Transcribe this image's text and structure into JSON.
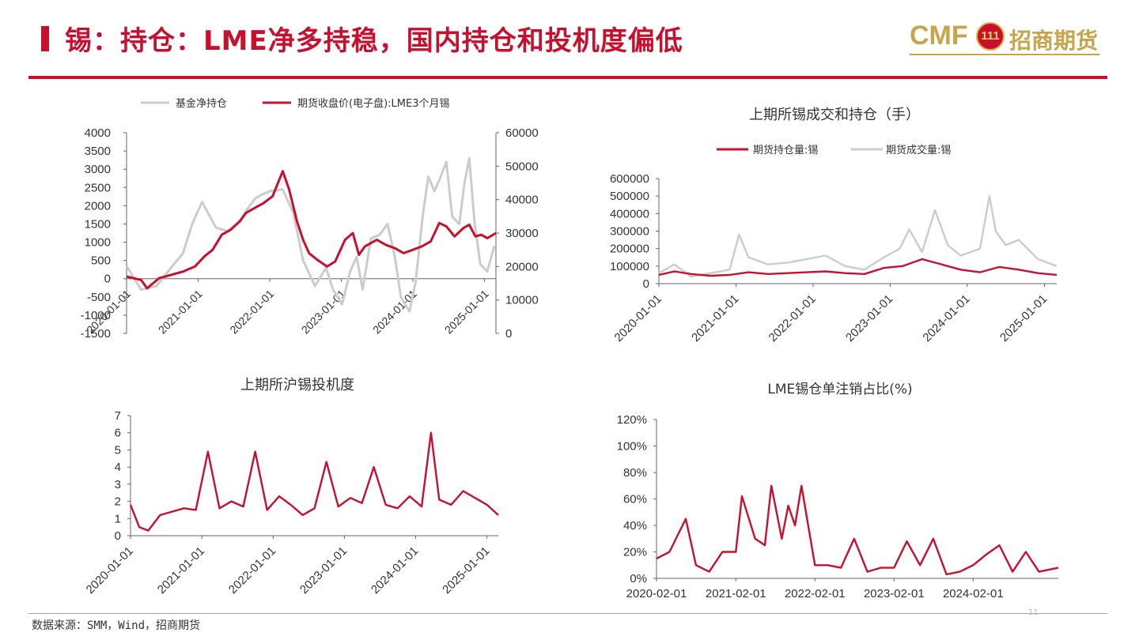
{
  "page": {
    "title": "锡：持仓：LME净多持稳，国内持仓和投机度偏低",
    "logo_cmf": "CMF",
    "logo_badge": "111",
    "logo_cn": "招商期货",
    "source": "数据来源：SMM，Wind，招商期货",
    "page_number": "11"
  },
  "colors": {
    "red": "#c8102e",
    "gray": "#cccccc",
    "gold": "#c9a44a"
  },
  "chart_data": [
    {
      "id": "c1",
      "type": "line",
      "title": "",
      "x_ticks": [
        "2020-01-01",
        "2021-01-01",
        "2022-01-01",
        "2023-01-01",
        "2024-01-01",
        "2025-01-01"
      ],
      "x_range": [
        "2020-01-01",
        "2025-02-28"
      ],
      "y_left_ticks": [
        "4000",
        "3500",
        "3000",
        "2500",
        "2000",
        "1500",
        "1000",
        "500",
        "0",
        "-500",
        "-1000",
        "-1500"
      ],
      "y_left_range": [
        -1500,
        4000
      ],
      "y_right_ticks": [
        "60000",
        "50000",
        "40000",
        "30000",
        "20000",
        "10000",
        "0"
      ],
      "y_right_range": [
        0,
        60000
      ],
      "legend_position": "top",
      "series": [
        {
          "name": "基金净持仓",
          "axis": "left",
          "color": "#cccccc",
          "x": [
            "2020-01-01",
            "2020-03-15",
            "2020-06-01",
            "2020-08-15",
            "2020-10-15",
            "2020-12-01",
            "2021-01-20",
            "2021-02-10",
            "2021-04-01",
            "2021-06-01",
            "2021-08-01",
            "2021-09-20",
            "2021-10-20",
            "2021-11-20",
            "2022-01-01",
            "2022-03-08",
            "2022-05-01",
            "2022-06-20",
            "2022-08-20",
            "2022-10-15",
            "2022-11-20",
            "2023-01-05",
            "2023-02-15",
            "2023-03-20",
            "2023-04-20",
            "2023-06-01",
            "2023-07-15",
            "2023-08-25",
            "2023-10-01",
            "2023-11-01",
            "2023-12-15",
            "2024-01-15",
            "2024-02-20",
            "2024-03-20",
            "2024-04-20",
            "2024-05-15",
            "2024-06-20",
            "2024-07-20",
            "2024-08-25",
            "2024-09-20",
            "2024-10-15",
            "2024-11-10",
            "2024-12-10",
            "2025-01-15",
            "2025-02-20"
          ],
          "y": [
            350,
            -300,
            -200,
            300,
            700,
            1500,
            2100,
            1900,
            1400,
            1300,
            1600,
            2000,
            2200,
            2300,
            2400,
            2450,
            1800,
            500,
            -200,
            300,
            -300,
            -700,
            200,
            600,
            -300,
            1100,
            1200,
            1500,
            600,
            -500,
            -900,
            -100,
            1700,
            2800,
            2400,
            2700,
            3200,
            1700,
            1500,
            2600,
            3300,
            1600,
            400,
            200,
            900
          ]
        },
        {
          "name": "期货收盘价(电子盘):LME3个月锡",
          "axis": "right",
          "color": "#c8102e",
          "x": [
            "2020-01-01",
            "2020-03-15",
            "2020-04-15",
            "2020-06-15",
            "2020-08-15",
            "2020-10-15",
            "2020-12-15",
            "2021-02-01",
            "2021-03-15",
            "2021-05-01",
            "2021-06-15",
            "2021-08-01",
            "2021-09-01",
            "2021-10-15",
            "2021-12-01",
            "2022-01-15",
            "2022-03-08",
            "2022-04-10",
            "2022-05-20",
            "2022-06-20",
            "2022-07-20",
            "2022-09-01",
            "2022-10-20",
            "2022-12-01",
            "2023-01-20",
            "2023-03-01",
            "2023-04-01",
            "2023-05-01",
            "2023-06-01",
            "2023-07-01",
            "2023-08-15",
            "2023-10-01",
            "2023-11-15",
            "2024-01-01",
            "2024-02-15",
            "2024-04-01",
            "2024-05-15",
            "2024-06-20",
            "2024-08-01",
            "2024-09-15",
            "2024-10-15",
            "2024-11-15",
            "2024-12-15",
            "2025-01-15",
            "2025-02-28"
          ],
          "y": [
            17000,
            16000,
            13500,
            16500,
            17500,
            18500,
            20000,
            23000,
            25000,
            29500,
            31000,
            33500,
            36000,
            37500,
            39000,
            41000,
            48500,
            43000,
            33500,
            28000,
            24000,
            22000,
            20000,
            21500,
            28000,
            30000,
            23500,
            26000,
            27000,
            28000,
            26500,
            25500,
            24000,
            25000,
            26000,
            27500,
            33000,
            32000,
            29000,
            31500,
            32500,
            29000,
            29500,
            28500,
            30000
          ]
        }
      ]
    },
    {
      "id": "c2",
      "type": "line",
      "title": "上期所锡成交和持仓（手）",
      "x_ticks": [
        "2020-01-01",
        "2021-01-01",
        "2022-01-01",
        "2023-01-01",
        "2024-01-01",
        "2025-01-01"
      ],
      "x_range": [
        "2020-01-01",
        "2025-02-28"
      ],
      "y_ticks": [
        "600000",
        "500000",
        "400000",
        "300000",
        "200000",
        "100000",
        "0"
      ],
      "y_range": [
        0,
        600000
      ],
      "legend_position": "top",
      "series": [
        {
          "name": "期货持仓量:锡",
          "color": "#c8102e",
          "x": [
            "2020-01-01",
            "2020-03-15",
            "2020-06-01",
            "2020-09-01",
            "2020-12-01",
            "2021-03-01",
            "2021-06-01",
            "2021-09-01",
            "2021-12-01",
            "2022-03-01",
            "2022-06-01",
            "2022-09-01",
            "2022-12-01",
            "2023-03-01",
            "2023-06-01",
            "2023-09-01",
            "2023-12-01",
            "2024-03-01",
            "2024-06-01",
            "2024-09-01",
            "2024-12-01",
            "2025-02-28"
          ],
          "y": [
            50000,
            70000,
            55000,
            45000,
            50000,
            65000,
            55000,
            60000,
            65000,
            70000,
            60000,
            55000,
            90000,
            100000,
            140000,
            110000,
            80000,
            65000,
            95000,
            80000,
            60000,
            50000
          ]
        },
        {
          "name": "期货成交量:锡",
          "color": "#cccccc",
          "x": [
            "2020-01-01",
            "2020-03-15",
            "2020-06-01",
            "2020-09-01",
            "2020-12-01",
            "2021-01-15",
            "2021-03-01",
            "2021-06-01",
            "2021-09-01",
            "2021-12-01",
            "2022-03-01",
            "2022-06-01",
            "2022-09-01",
            "2022-12-01",
            "2023-02-15",
            "2023-04-01",
            "2023-06-01",
            "2023-08-01",
            "2023-10-01",
            "2023-12-01",
            "2024-03-01",
            "2024-04-15",
            "2024-05-15",
            "2024-07-01",
            "2024-09-01",
            "2024-12-01",
            "2025-02-28"
          ],
          "y": [
            60000,
            110000,
            40000,
            60000,
            80000,
            280000,
            150000,
            110000,
            120000,
            140000,
            160000,
            100000,
            80000,
            150000,
            200000,
            310000,
            180000,
            420000,
            220000,
            160000,
            200000,
            500000,
            300000,
            220000,
            250000,
            140000,
            100000
          ]
        }
      ]
    },
    {
      "id": "c3",
      "type": "line",
      "title": "上期所沪锡投机度",
      "x_ticks": [
        "2020-01-01",
        "2021-01-01",
        "2022-01-01",
        "2023-01-01",
        "2024-01-01",
        "2025-01-01"
      ],
      "x_range": [
        "2020-01-01",
        "2025-02-28"
      ],
      "y_ticks": [
        "7",
        "6",
        "5",
        "4",
        "3",
        "2",
        "1",
        "0"
      ],
      "y_range": [
        0,
        7
      ],
      "series": [
        {
          "name": "上期所沪锡投机度",
          "color": "#c8102e",
          "x": [
            "2020-01-01",
            "2020-02-15",
            "2020-04-01",
            "2020-06-01",
            "2020-08-01",
            "2020-10-01",
            "2020-12-01",
            "2021-02-01",
            "2021-04-01",
            "2021-06-01",
            "2021-08-01",
            "2021-10-01",
            "2021-12-01",
            "2022-02-01",
            "2022-04-01",
            "2022-06-01",
            "2022-08-01",
            "2022-10-01",
            "2022-12-01",
            "2023-02-01",
            "2023-04-01",
            "2023-06-01",
            "2023-08-01",
            "2023-10-01",
            "2023-12-01",
            "2024-02-01",
            "2024-03-20",
            "2024-05-01",
            "2024-07-01",
            "2024-09-01",
            "2024-11-01",
            "2025-01-01",
            "2025-02-28"
          ],
          "y": [
            1.8,
            0.5,
            0.3,
            1.2,
            1.4,
            1.6,
            1.5,
            4.9,
            1.6,
            2.0,
            1.7,
            4.9,
            1.5,
            2.3,
            1.8,
            1.2,
            1.6,
            4.3,
            1.7,
            2.2,
            1.9,
            4.0,
            1.8,
            1.6,
            2.3,
            1.7,
            6.0,
            2.1,
            1.8,
            2.6,
            2.2,
            1.8,
            1.2
          ]
        }
      ]
    },
    {
      "id": "c4",
      "type": "line",
      "title": "LME锡仓单注销占比(%)",
      "x_ticks": [
        "2020-02-01",
        "2021-02-01",
        "2022-02-01",
        "2023-02-01",
        "2024-02-01"
      ],
      "x_range": [
        "2020-02-01",
        "2025-02-28"
      ],
      "y_ticks": [
        "120%",
        "100%",
        "80%",
        "60%",
        "40%",
        "20%",
        "0%"
      ],
      "y_range": [
        0,
        120
      ],
      "series": [
        {
          "name": "LME锡仓单注销占比(%)",
          "color": "#c8102e",
          "x": [
            "2020-02-01",
            "2020-04-01",
            "2020-06-15",
            "2020-08-01",
            "2020-10-01",
            "2020-12-01",
            "2021-02-01",
            "2021-03-01",
            "2021-05-01",
            "2021-06-15",
            "2021-07-15",
            "2021-09-01",
            "2021-10-01",
            "2021-11-01",
            "2021-12-01",
            "2022-02-01",
            "2022-04-01",
            "2022-06-01",
            "2022-08-01",
            "2022-10-01",
            "2022-12-01",
            "2023-02-01",
            "2023-04-01",
            "2023-06-01",
            "2023-08-01",
            "2023-10-01",
            "2023-12-01",
            "2024-02-01",
            "2024-04-01",
            "2024-06-01",
            "2024-08-01",
            "2024-10-01",
            "2024-12-01",
            "2025-02-28"
          ],
          "y": [
            15,
            20,
            45,
            10,
            5,
            20,
            20,
            62,
            30,
            25,
            70,
            30,
            55,
            40,
            70,
            10,
            10,
            8,
            30,
            5,
            8,
            8,
            28,
            10,
            30,
            3,
            5,
            10,
            18,
            25,
            5,
            20,
            5,
            8
          ]
        }
      ]
    }
  ]
}
